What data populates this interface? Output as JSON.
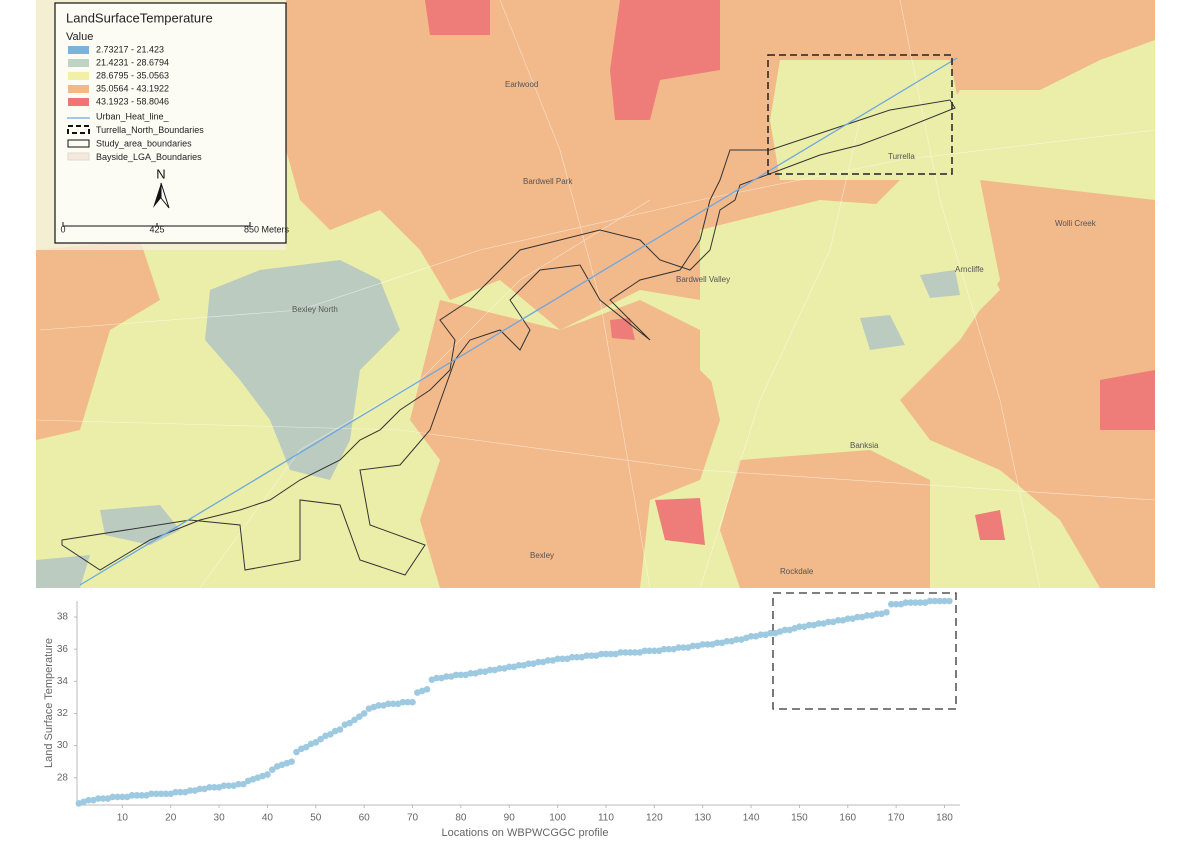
{
  "legend": {
    "title": "LandSurfaceTemperature",
    "value_heading": "Value",
    "classes": [
      {
        "label": "2.73217 - 21.423",
        "color": "#7eb1d6"
      },
      {
        "label": "21.4231 - 28.6794",
        "color": "#bfd3c4"
      },
      {
        "label": "28.6795 - 35.0563",
        "color": "#f2f0a8"
      },
      {
        "label": "35.0564 - 43.1922",
        "color": "#f5b784"
      },
      {
        "label": "43.1923 - 58.8046",
        "color": "#f07474"
      }
    ],
    "items": [
      "Urban_Heat_line_",
      "Turrella_North_Boundaries",
      "Study_area_boundaries",
      "Bayside_LGA_Boundaries"
    ],
    "north": "N",
    "scale_labels": [
      "0",
      "425",
      "850 Meters"
    ]
  },
  "places": [
    "Earlwood",
    "Bardwell Park",
    "Bardwell Valley",
    "Bexley North",
    "Bexley",
    "Arncliffe",
    "Wolli Creek",
    "Turrella",
    "Banksia",
    "Rockdale"
  ],
  "chart_data": {
    "type": "scatter",
    "xlabel": "Locations on WBPWCGGC profile",
    "ylabel": "Land Surface Temperature",
    "color": "#9ecae1",
    "x": [
      1,
      2,
      3,
      4,
      5,
      6,
      7,
      8,
      9,
      10,
      11,
      12,
      13,
      14,
      15,
      16,
      17,
      18,
      19,
      20,
      21,
      22,
      23,
      24,
      25,
      26,
      27,
      28,
      29,
      30,
      31,
      32,
      33,
      34,
      35,
      36,
      37,
      38,
      39,
      40,
      41,
      42,
      43,
      44,
      45,
      46,
      47,
      48,
      49,
      50,
      51,
      52,
      53,
      54,
      55,
      56,
      57,
      58,
      59,
      60,
      61,
      62,
      63,
      64,
      65,
      66,
      67,
      68,
      69,
      70,
      71,
      72,
      73,
      74,
      75,
      76,
      77,
      78,
      79,
      80,
      81,
      82,
      83,
      84,
      85,
      86,
      87,
      88,
      89,
      90,
      91,
      92,
      93,
      94,
      95,
      96,
      97,
      98,
      99,
      100,
      101,
      102,
      103,
      104,
      105,
      106,
      107,
      108,
      109,
      110,
      111,
      112,
      113,
      114,
      115,
      116,
      117,
      118,
      119,
      120,
      121,
      122,
      123,
      124,
      125,
      126,
      127,
      128,
      129,
      130,
      131,
      132,
      133,
      134,
      135,
      136,
      137,
      138,
      139,
      140,
      141,
      142,
      143,
      144,
      145,
      146,
      147,
      148,
      149,
      150,
      151,
      152,
      153,
      154,
      155,
      156,
      157,
      158,
      159,
      160,
      161,
      162,
      163,
      164,
      165,
      166,
      167,
      168,
      169,
      170,
      171,
      172,
      173,
      174,
      175,
      176,
      177,
      178,
      179,
      180,
      181
    ],
    "values": [
      26.4,
      26.5,
      26.6,
      26.6,
      26.7,
      26.7,
      26.7,
      26.8,
      26.8,
      26.8,
      26.8,
      26.9,
      26.9,
      26.9,
      26.9,
      27.0,
      27.0,
      27.0,
      27.0,
      27.0,
      27.1,
      27.1,
      27.1,
      27.2,
      27.2,
      27.3,
      27.3,
      27.4,
      27.4,
      27.4,
      27.5,
      27.5,
      27.5,
      27.6,
      27.6,
      27.8,
      27.9,
      28.0,
      28.1,
      28.2,
      28.5,
      28.7,
      28.8,
      28.9,
      29.0,
      29.6,
      29.8,
      29.9,
      30.1,
      30.2,
      30.4,
      30.6,
      30.7,
      30.9,
      31.0,
      31.3,
      31.4,
      31.6,
      31.8,
      32.0,
      32.3,
      32.4,
      32.5,
      32.5,
      32.6,
      32.6,
      32.6,
      32.7,
      32.7,
      32.7,
      33.3,
      33.4,
      33.5,
      34.1,
      34.2,
      34.2,
      34.3,
      34.3,
      34.4,
      34.4,
      34.4,
      34.5,
      34.5,
      34.6,
      34.6,
      34.7,
      34.7,
      34.8,
      34.8,
      34.9,
      34.9,
      35.0,
      35.0,
      35.1,
      35.1,
      35.2,
      35.2,
      35.3,
      35.3,
      35.4,
      35.4,
      35.4,
      35.5,
      35.5,
      35.5,
      35.6,
      35.6,
      35.6,
      35.7,
      35.7,
      35.7,
      35.7,
      35.8,
      35.8,
      35.8,
      35.8,
      35.8,
      35.9,
      35.9,
      35.9,
      35.9,
      36.0,
      36.0,
      36.0,
      36.1,
      36.1,
      36.1,
      36.2,
      36.2,
      36.3,
      36.3,
      36.3,
      36.4,
      36.4,
      36.5,
      36.5,
      36.6,
      36.6,
      36.7,
      36.8,
      36.8,
      36.9,
      36.9,
      37.0,
      37.0,
      37.1,
      37.2,
      37.2,
      37.3,
      37.4,
      37.4,
      37.5,
      37.5,
      37.6,
      37.6,
      37.7,
      37.7,
      37.8,
      37.8,
      37.9,
      37.9,
      38.0,
      38.0,
      38.1,
      38.1,
      38.2,
      38.2,
      38.3,
      38.8,
      38.8,
      38.8,
      38.9,
      38.9,
      38.9,
      38.9,
      38.9,
      39.0,
      39.0,
      39.0,
      39.0,
      39.0
    ],
    "xlim": [
      0,
      183
    ],
    "ylim": [
      26.3,
      39.0
    ],
    "xticks": [
      10,
      20,
      30,
      40,
      50,
      60,
      70,
      80,
      90,
      100,
      110,
      120,
      130,
      140,
      150,
      160,
      170,
      180
    ],
    "yticks": [
      28,
      30,
      32,
      34,
      36,
      38
    ]
  }
}
